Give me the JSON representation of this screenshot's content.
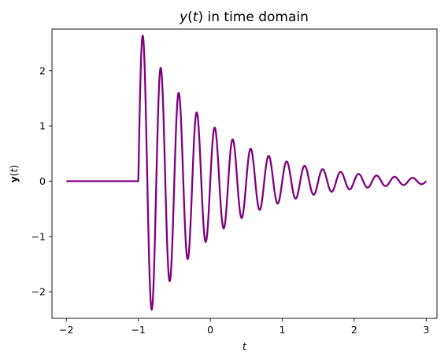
{
  "chart_data": {
    "type": "line",
    "title": {
      "var": "y",
      "arg": "t",
      "rest": " in time domain"
    },
    "xlabel": "t",
    "ylabel": {
      "var": "y",
      "arg": "t"
    },
    "xlim": [
      -2.2,
      3.15
    ],
    "ylim": [
      -2.48,
      2.75
    ],
    "xticks": [
      -2,
      -1,
      0,
      1,
      2,
      3
    ],
    "xtick_labels": [
      "−2",
      "−1",
      "0",
      "1",
      "2",
      "3"
    ],
    "yticks": [
      -2,
      -1,
      0,
      1,
      2
    ],
    "ytick_labels": [
      "−2",
      "−1",
      "0",
      "1",
      "2"
    ],
    "grid": false,
    "legend": "none",
    "series": [
      {
        "color": "#800080",
        "x_range": [
          -2,
          3
        ],
        "onset": -1,
        "value_before_onset": 0,
        "function": "A*exp(-decay*(t - onset))*sin(2*pi*freq*(t - onset))",
        "amplitude": 2.8,
        "decay": 1.0,
        "frequency_hz": 4,
        "peaks": [
          {
            "t": -0.94,
            "y": 2.55
          },
          {
            "t": -0.82,
            "y": -2.23
          },
          {
            "t": -0.69,
            "y": 1.99
          },
          {
            "t": -0.57,
            "y": -1.73
          },
          {
            "t": -0.44,
            "y": 1.55
          },
          {
            "t": -0.32,
            "y": -1.35
          },
          {
            "t": -0.19,
            "y": 1.21
          },
          {
            "t": -0.07,
            "y": -1.05
          },
          {
            "t": 0.06,
            "y": 0.94
          },
          {
            "t": 0.18,
            "y": -0.82
          },
          {
            "t": 0.31,
            "y": 0.73
          },
          {
            "t": 0.56,
            "y": 0.57
          },
          {
            "t": 0.81,
            "y": 0.45
          },
          {
            "t": 1.06,
            "y": 0.35
          },
          {
            "t": 1.31,
            "y": 0.27
          },
          {
            "t": 1.56,
            "y": 0.21
          },
          {
            "t": 1.81,
            "y": 0.17
          },
          {
            "t": 2.06,
            "y": 0.13
          },
          {
            "t": 2.31,
            "y": 0.1
          },
          {
            "t": 2.56,
            "y": 0.08
          },
          {
            "t": 2.81,
            "y": 0.06
          }
        ]
      }
    ]
  }
}
